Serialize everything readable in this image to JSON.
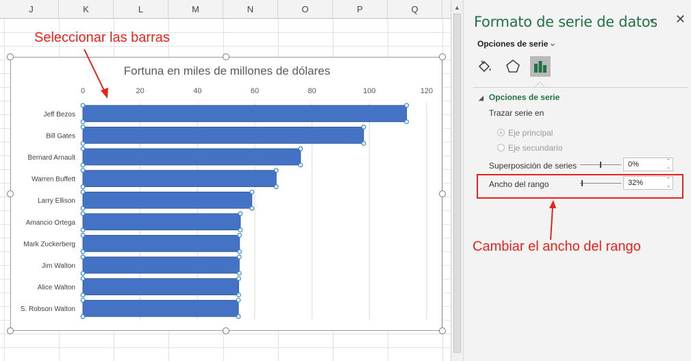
{
  "sheet": {
    "columns": [
      "J",
      "K",
      "L",
      "M",
      "N",
      "O",
      "P",
      "Q"
    ]
  },
  "chart_data": {
    "type": "bar",
    "orientation": "horizontal",
    "title": "Fortuna en miles de millones de dólares",
    "categories": [
      "Jeff Bezos",
      "Bill Gates",
      "Bernard Arnault",
      "Warren Buffett",
      "Larry Ellison",
      "Amancio Ortega",
      "Mark Zuckerberg",
      "Jim Walton",
      "Alice Walton",
      "S. Robson Walton"
    ],
    "values": [
      113,
      98,
      76,
      67.5,
      59,
      55,
      54.7,
      54.6,
      54.4,
      54.3
    ],
    "xlim": [
      0,
      120
    ],
    "x_ticks": [
      "0",
      "20",
      "40",
      "60",
      "80",
      "100",
      "120"
    ],
    "x_axis_position": "top",
    "grid": true,
    "bar_color": "#4472c4",
    "selected": true
  },
  "annotations": {
    "select_bars": "Seleccionar las barras",
    "change_width": "Cambiar el ancho del rango"
  },
  "pane": {
    "title": "Formato de serie de datos",
    "series_options_dropdown": "Opciones de serie",
    "icons": [
      "paint-bucket-icon",
      "pentagon-icon",
      "bar-chart-icon"
    ],
    "section_title": "Opciones de serie",
    "plot_series_on": "Trazar serie en",
    "primary_axis": "Eje principal",
    "secondary_axis": "Eje secundario",
    "overlap_label": "Superposición de series",
    "overlap_value": "0%",
    "overlap_percent": 0,
    "gap_label": "Ancho del rango",
    "gap_value": "32%",
    "gap_percent": 32,
    "accent_color": "#217346"
  }
}
